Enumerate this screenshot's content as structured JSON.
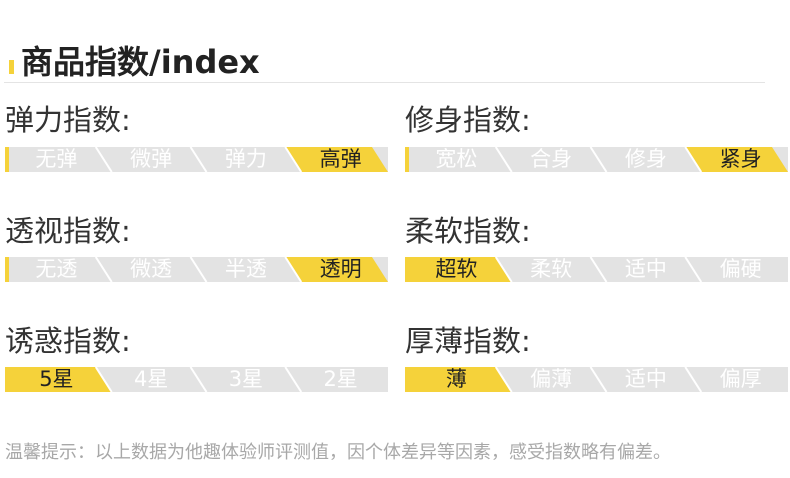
{
  "header": {
    "title": "商品指数/index"
  },
  "colors": {
    "accent": "#f5d23a",
    "inactive": "#e3e3e3",
    "separator": "#ffffff"
  },
  "indices": [
    {
      "label": "弹力指数:",
      "options": [
        "无弹",
        "微弹",
        "弹力",
        "高弹"
      ],
      "selected": 3
    },
    {
      "label": "修身指数:",
      "options": [
        "宽松",
        "合身",
        "修身",
        "紧身"
      ],
      "selected": 3
    },
    {
      "label": "透视指数:",
      "options": [
        "无透",
        "微透",
        "半透",
        "透明"
      ],
      "selected": 3
    },
    {
      "label": "柔软指数:",
      "options": [
        "超软",
        "柔软",
        "适中",
        "偏硬"
      ],
      "selected": 0
    },
    {
      "label": "诱惑指数:",
      "options": [
        "5星",
        "4星",
        "3星",
        "2星"
      ],
      "selected": 0
    },
    {
      "label": "厚薄指数:",
      "options": [
        "薄",
        "偏薄",
        "适中",
        "偏厚"
      ],
      "selected": 0
    }
  ],
  "footer": {
    "note": "温馨提示：以上数据为他趣体验师评测值，因个体差异等因素，感受指数略有偏差。"
  }
}
